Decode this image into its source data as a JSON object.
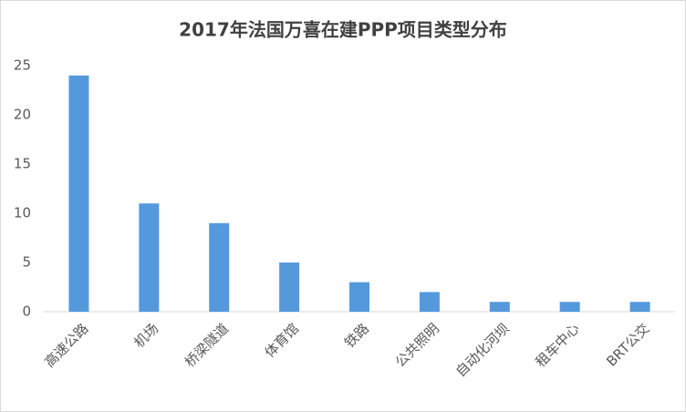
{
  "chart_data": {
    "type": "bar",
    "title": "2017年法国万喜在建PPP项目类型分布",
    "categories": [
      "高速公路",
      "机场",
      "桥梁隧道",
      "体育馆",
      "铁路",
      "公共照明",
      "自动化河坝",
      "租车中心",
      "BRT公交"
    ],
    "values": [
      24,
      11,
      9,
      5,
      3,
      2,
      1,
      1,
      1
    ],
    "color": "#5599dd",
    "ylim": [
      0,
      25
    ],
    "yticks": [
      0,
      5,
      10,
      15,
      20,
      25
    ],
    "grid": false
  }
}
